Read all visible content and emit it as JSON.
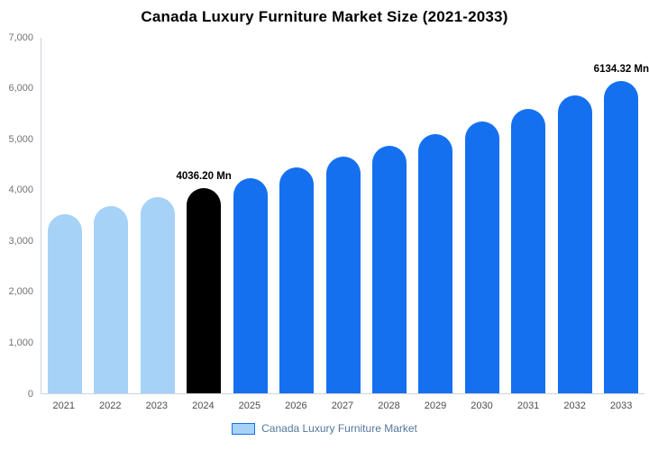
{
  "title": "Canada Luxury Furniture Market Size (2021-2033)",
  "legend": {
    "label": "Canada Luxury Furniture Market"
  },
  "colors": {
    "light_bar": "#A6D2F8",
    "highlight_bar": "#000000",
    "main_bar": "#1570EF",
    "axis_line": "#ccd3da",
    "tick_text": "#737373",
    "x_tick_text": "#4d4d4d",
    "annotation_text": "#000000"
  },
  "chart_data": {
    "type": "bar",
    "title": "Canada Luxury Furniture Market Size (2021-2033)",
    "categories": [
      "2021",
      "2022",
      "2023",
      "2024",
      "2025",
      "2026",
      "2027",
      "2028",
      "2029",
      "2030",
      "2031",
      "2032",
      "2033"
    ],
    "values": [
      3510,
      3678,
      3853,
      4036.2,
      4228,
      4430,
      4641,
      4861,
      5093,
      5335,
      5589,
      5855,
      6134.32
    ],
    "bar_colors": [
      "#A6D2F8",
      "#A6D2F8",
      "#A6D2F8",
      "#000000",
      "#1570EF",
      "#1570EF",
      "#1570EF",
      "#1570EF",
      "#1570EF",
      "#1570EF",
      "#1570EF",
      "#1570EF",
      "#1570EF"
    ],
    "annotations": [
      {
        "category": "2024",
        "text": "4036.20 Mn"
      },
      {
        "category": "2033",
        "text": "6134.32 Mn"
      }
    ],
    "xlabel": "",
    "ylabel": "",
    "ylim": [
      0,
      7000
    ],
    "yticks": [
      "7,000",
      "6,000",
      "5,000",
      "4,000",
      "3,000",
      "2,000",
      "1,000",
      "0"
    ],
    "grid": false,
    "legend_position": "bottom",
    "legend_entries": [
      "Canada Luxury Furniture Market"
    ]
  }
}
